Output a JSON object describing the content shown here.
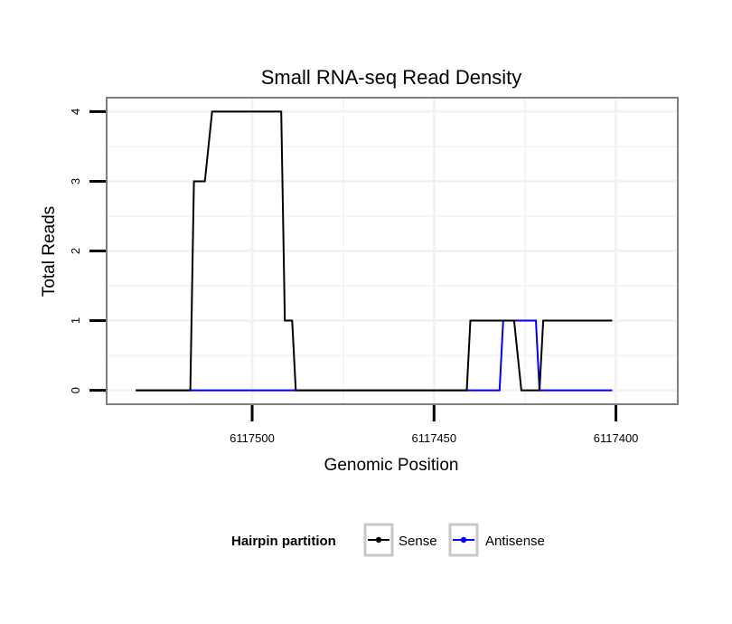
{
  "chart_data": {
    "type": "line",
    "title": "Small RNA-seq Read Density",
    "xlabel": "Genomic Position",
    "ylabel": "Total Reads",
    "xlim": [
      6117540,
      6117383
    ],
    "ylim": [
      -0.2,
      4.2
    ],
    "x_reversed": true,
    "xticks": [
      6117500,
      6117450,
      6117400
    ],
    "xtick_labels": [
      "6117500",
      "6117450",
      "6117400"
    ],
    "yticks": [
      0,
      1,
      2,
      3,
      4
    ],
    "ytick_labels": [
      "0",
      "1",
      "2",
      "3",
      "4"
    ],
    "grid": true,
    "legend": {
      "title": "Hairpin partition",
      "position": "bottom",
      "entries": [
        "Sense",
        "Antisense"
      ]
    },
    "series": [
      {
        "name": "Sense",
        "color": "#000000",
        "x": [
          6117532,
          6117517,
          6117516,
          6117513,
          6117511,
          6117492,
          6117491,
          6117489,
          6117488,
          6117451,
          6117450,
          6117441,
          6117440,
          6117428,
          6117426,
          6117421,
          6117420,
          6117401
        ],
        "y": [
          0,
          0,
          3,
          3,
          4,
          4,
          1,
          1,
          0,
          0,
          0,
          0,
          1,
          1,
          0,
          0,
          1,
          1
        ]
      },
      {
        "name": "Antisense",
        "color": "#0000ff",
        "x": [
          6117532,
          6117442,
          6117441,
          6117432,
          6117431,
          6117422,
          6117421,
          6117401
        ],
        "y": [
          0,
          0,
          0,
          0,
          1,
          1,
          0,
          0
        ]
      }
    ]
  }
}
